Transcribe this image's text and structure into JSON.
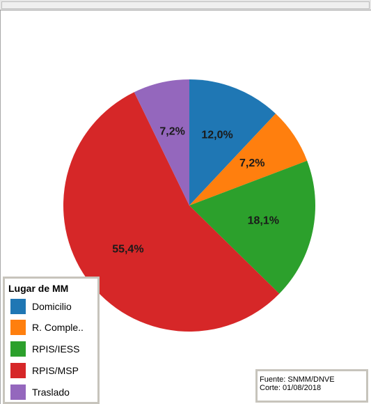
{
  "chart_data": {
    "type": "pie",
    "categories": [
      "Domicilio",
      "R. Comple..",
      "RPIS/IESS",
      "RPIS/MSP",
      "Traslado"
    ],
    "values": [
      12.0,
      7.2,
      18.1,
      55.4,
      7.2
    ],
    "value_labels": [
      "12,0%",
      "7,2%",
      "18,1%",
      "55,4%",
      "7,2%"
    ],
    "colors": [
      "#1f77b4",
      "#ff7f0e",
      "#2ca02c",
      "#d62728",
      "#9467bd"
    ],
    "start_direction": "12 o'clock",
    "direction": "clockwise",
    "legend_title": "Lugar de MM",
    "legend_position": "bottom-left"
  },
  "legend": {
    "title": "Lugar de MM",
    "items": [
      {
        "label": "Domicilio",
        "color": "#1f77b4"
      },
      {
        "label": "R. Comple..",
        "color": "#ff7f0e"
      },
      {
        "label": "RPIS/IESS",
        "color": "#2ca02c"
      },
      {
        "label": "RPIS/MSP",
        "color": "#d62728"
      },
      {
        "label": "Traslado",
        "color": "#9467bd"
      }
    ]
  },
  "source": {
    "line1": "Fuente: SNMM/DNVE",
    "line2": "Corte: 01/08/2018"
  }
}
